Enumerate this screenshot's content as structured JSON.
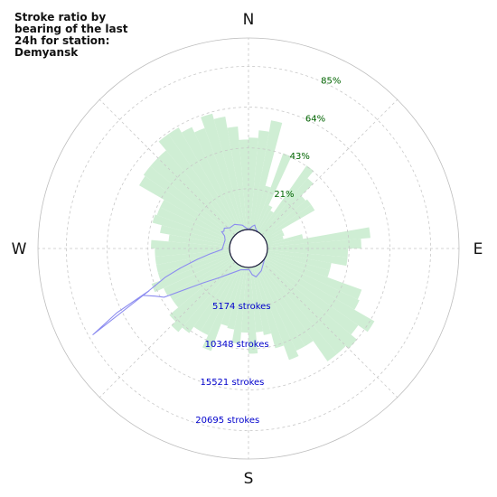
{
  "chart_data": {
    "type": "polar-bar",
    "title": "Stroke ratio by bearing of the last 24h for station: Demyansk",
    "direction": "clockwise",
    "zero_location": "N",
    "compass_labels": [
      "N",
      "E",
      "S",
      "W"
    ],
    "ratio_rings": [
      "21%",
      "43%",
      "64%",
      "85%"
    ],
    "ratio_ring_values": [
      21.3,
      42.6,
      63.9,
      85.2
    ],
    "count_rings": [
      "5174 strokes",
      "10348 strokes",
      "15521 strokes",
      "20695 strokes"
    ],
    "count_ring_values": [
      5174,
      10348,
      15521,
      20695
    ],
    "count_max": 25869,
    "sector_width_deg": 5,
    "sectors_ratio_start_deg": 0,
    "ratio_series": {
      "name": "",
      "color": "#cfeed4",
      "values": [
        1,
        8,
        30,
        24,
        43,
        15,
        13,
        43,
        38,
        29,
        30,
        30,
        10,
        10,
        9,
        19,
        54,
        49,
        42,
        42,
        34,
        34,
        53,
        54,
        66,
        60,
        64,
        62,
        62,
        49,
        49,
        52,
        44,
        36,
        34,
        45,
        34,
        40,
        33,
        32,
        47,
        40,
        40,
        44,
        47,
        44,
        38,
        38,
        39,
        44,
        39,
        39,
        39,
        39,
        41,
        32,
        37,
        42,
        41,
        41,
        56,
        57,
        57,
        57,
        63,
        63,
        60,
        57,
        63,
        60,
        54,
        47,
        48,
        52,
        58,
        3,
        2,
        2,
        2,
        6,
        9,
        7,
        7,
        4,
        4,
        3,
        3,
        3,
        2,
        2,
        1,
        1,
        4,
        1,
        1,
        1
      ]
    },
    "count_series": {
      "name": "",
      "color": "#8c8cf0",
      "points": [
        {
          "bearing": 0,
          "count": 0
        },
        {
          "bearing": 5,
          "count": 200
        },
        {
          "bearing": 10,
          "count": 500
        },
        {
          "bearing": 15,
          "count": 700
        },
        {
          "bearing": 20,
          "count": 300
        },
        {
          "bearing": 90,
          "count": 0
        },
        {
          "bearing": 150,
          "count": 900
        },
        {
          "bearing": 165,
          "count": 1400
        },
        {
          "bearing": 172,
          "count": 1000
        },
        {
          "bearing": 178,
          "count": 300
        },
        {
          "bearing": 200,
          "count": 500
        },
        {
          "bearing": 225,
          "count": 3000
        },
        {
          "bearing": 233,
          "count": 5200
        },
        {
          "bearing": 240,
          "count": 10600
        },
        {
          "bearing": 243,
          "count": 11600
        },
        {
          "bearing": 246,
          "count": 13000
        },
        {
          "bearing": 247,
          "count": 12000
        },
        {
          "bearing": 244,
          "count": 17200
        },
        {
          "bearing": 241,
          "count": 21500
        },
        {
          "bearing": 246,
          "count": 13000
        },
        {
          "bearing": 251,
          "count": 9300
        },
        {
          "bearing": 254,
          "count": 7000
        },
        {
          "bearing": 258,
          "count": 4500
        },
        {
          "bearing": 262,
          "count": 2700
        },
        {
          "bearing": 268,
          "count": 1000
        },
        {
          "bearing": 290,
          "count": 800
        },
        {
          "bearing": 298,
          "count": 1100
        },
        {
          "bearing": 302,
          "count": 1700
        },
        {
          "bearing": 305,
          "count": 1500
        },
        {
          "bearing": 310,
          "count": 1700
        },
        {
          "bearing": 318,
          "count": 1200
        },
        {
          "bearing": 330,
          "count": 1200
        },
        {
          "bearing": 345,
          "count": 700
        },
        {
          "bearing": 360,
          "count": 0
        }
      ]
    },
    "grid": true,
    "ratio_ring_label_color": "#006400",
    "count_ring_label_color": "#0000cc"
  }
}
